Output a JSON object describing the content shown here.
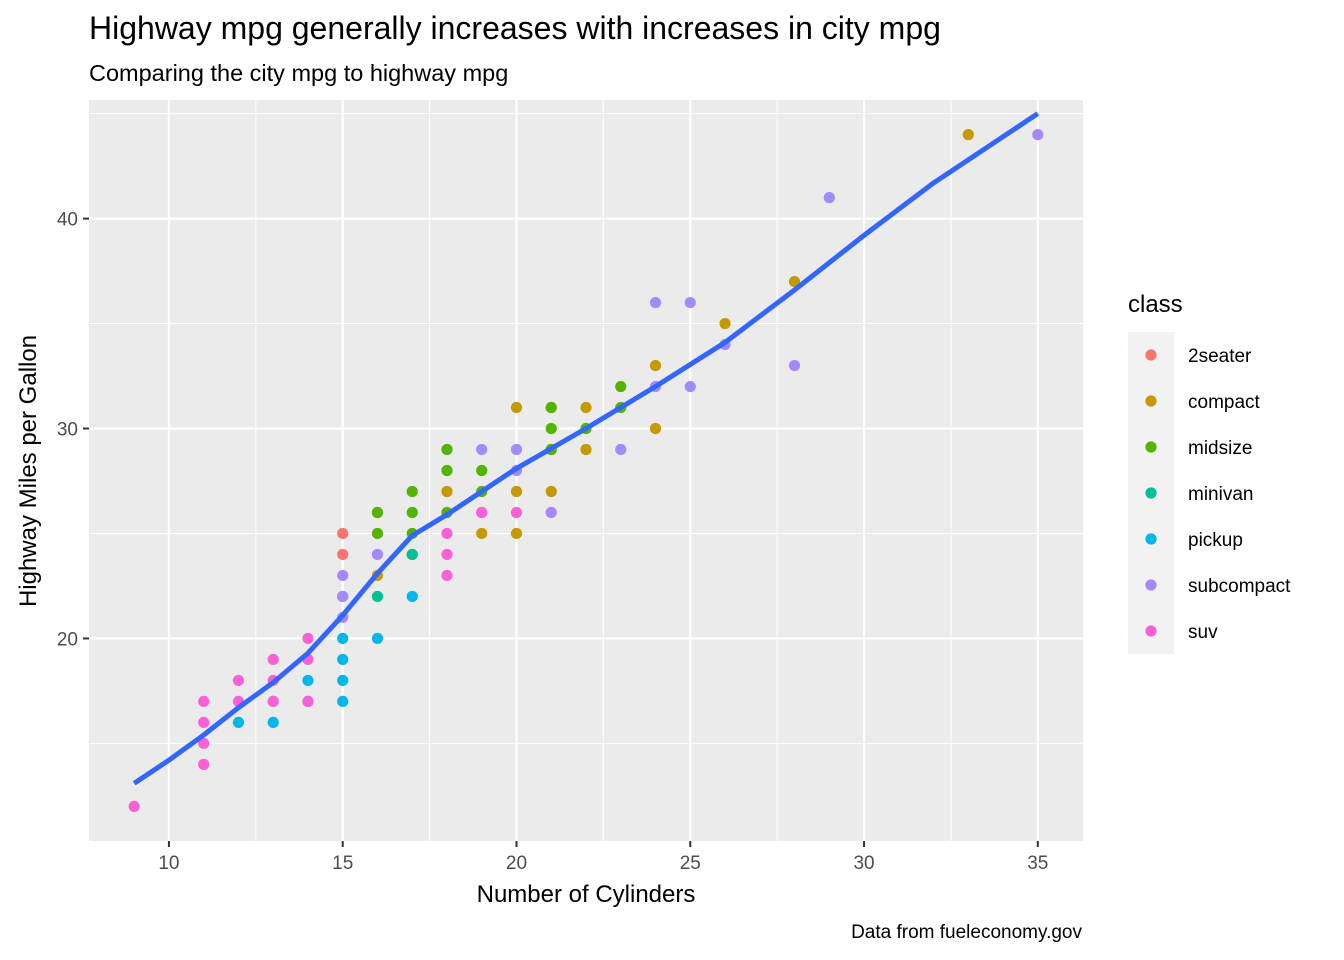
{
  "chart_data": {
    "type": "scatter",
    "title": "Highway mpg generally increases with increases in city mpg",
    "subtitle": "Comparing the city mpg to highway mpg",
    "caption": "Data from fueleconomy.gov",
    "xlabel": "Number of Cylinders",
    "ylabel": "Highway Miles per Gallon",
    "xlim": [
      7.7,
      36.3
    ],
    "ylim": [
      10.35,
      45.65
    ],
    "x_ticks": [
      10,
      15,
      20,
      25,
      30,
      35
    ],
    "y_ticks": [
      20,
      30,
      40
    ],
    "grid": true,
    "panel_background": "#ebebeb",
    "legend": {
      "title": "class",
      "position": "right",
      "entries": [
        {
          "name": "2seater",
          "color": "#F8766D"
        },
        {
          "name": "compact",
          "color": "#C49A00"
        },
        {
          "name": "midsize",
          "color": "#53B400"
        },
        {
          "name": "minivan",
          "color": "#00C094"
        },
        {
          "name": "pickup",
          "color": "#00B6EB"
        },
        {
          "name": "subcompact",
          "color": "#A58AFF"
        },
        {
          "name": "suv",
          "color": "#FB61D7"
        }
      ]
    },
    "series": [
      {
        "name": "2seater",
        "color": "#F8766D",
        "points": [
          [
            15,
            25
          ],
          [
            15,
            24
          ],
          [
            16,
            26
          ]
        ]
      },
      {
        "name": "compact",
        "color": "#C49A00",
        "points": [
          [
            16,
            23
          ],
          [
            17,
            24
          ],
          [
            18,
            27
          ],
          [
            19,
            25
          ],
          [
            20,
            31
          ],
          [
            20,
            27
          ],
          [
            20,
            25
          ],
          [
            21,
            31
          ],
          [
            21,
            29
          ],
          [
            21,
            27
          ],
          [
            22,
            31
          ],
          [
            22,
            29
          ],
          [
            24,
            33
          ],
          [
            24,
            30
          ],
          [
            26,
            35
          ],
          [
            28,
            37
          ],
          [
            33,
            44
          ]
        ]
      },
      {
        "name": "midsize",
        "color": "#53B400",
        "points": [
          [
            16,
            26
          ],
          [
            16,
            25
          ],
          [
            17,
            27
          ],
          [
            17,
            26
          ],
          [
            17,
            25
          ],
          [
            18,
            29
          ],
          [
            18,
            28
          ],
          [
            18,
            26
          ],
          [
            19,
            28
          ],
          [
            19,
            27
          ],
          [
            21,
            31
          ],
          [
            21,
            30
          ],
          [
            21,
            29
          ],
          [
            22,
            30
          ],
          [
            23,
            32
          ],
          [
            23,
            31
          ]
        ]
      },
      {
        "name": "minivan",
        "color": "#00C094",
        "points": [
          [
            15,
            22
          ],
          [
            16,
            22
          ],
          [
            17,
            24
          ]
        ]
      },
      {
        "name": "pickup",
        "color": "#00B6EB",
        "points": [
          [
            12,
            16
          ],
          [
            13,
            17
          ],
          [
            13,
            16
          ],
          [
            14,
            18
          ],
          [
            14,
            17
          ],
          [
            15,
            20
          ],
          [
            15,
            19
          ],
          [
            15,
            18
          ],
          [
            15,
            17
          ],
          [
            16,
            20
          ],
          [
            17,
            22
          ]
        ]
      },
      {
        "name": "subcompact",
        "color": "#A58AFF",
        "points": [
          [
            15,
            23
          ],
          [
            15,
            22
          ],
          [
            15,
            21
          ],
          [
            16,
            24
          ],
          [
            19,
            29
          ],
          [
            19,
            26
          ],
          [
            20,
            29
          ],
          [
            20,
            28
          ],
          [
            21,
            26
          ],
          [
            23,
            29
          ],
          [
            24,
            36
          ],
          [
            24,
            32
          ],
          [
            25,
            36
          ],
          [
            25,
            32
          ],
          [
            26,
            34
          ],
          [
            28,
            33
          ],
          [
            29,
            41
          ],
          [
            35,
            44
          ]
        ]
      },
      {
        "name": "suv",
        "color": "#FB61D7",
        "points": [
          [
            9,
            12
          ],
          [
            11,
            17
          ],
          [
            11,
            16
          ],
          [
            11,
            15
          ],
          [
            11,
            14
          ],
          [
            12,
            18
          ],
          [
            12,
            17
          ],
          [
            13,
            19
          ],
          [
            13,
            18
          ],
          [
            13,
            17
          ],
          [
            14,
            20
          ],
          [
            14,
            19
          ],
          [
            14,
            17
          ],
          [
            18,
            25
          ],
          [
            18,
            24
          ],
          [
            18,
            23
          ],
          [
            19,
            26
          ],
          [
            20,
            26
          ]
        ]
      }
    ],
    "smooth_line": {
      "color": "#3366FF",
      "points": [
        [
          9,
          13.1
        ],
        [
          10,
          14.2
        ],
        [
          11,
          15.4
        ],
        [
          12,
          16.7
        ],
        [
          13,
          17.9
        ],
        [
          14,
          19.3
        ],
        [
          15,
          21.1
        ],
        [
          16,
          23.1
        ],
        [
          17,
          24.9
        ],
        [
          18,
          25.9
        ],
        [
          19,
          27.0
        ],
        [
          20,
          28.1
        ],
        [
          22,
          30.0
        ],
        [
          24,
          32.0
        ],
        [
          26,
          34.1
        ],
        [
          28,
          36.6
        ],
        [
          30,
          39.2
        ],
        [
          32,
          41.7
        ],
        [
          35,
          45.0
        ]
      ]
    }
  }
}
